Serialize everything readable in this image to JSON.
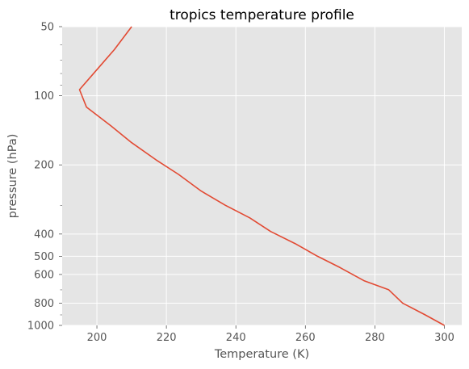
{
  "chart_data": {
    "type": "line",
    "title": "tropics temperature profile",
    "xlabel": "Temperature (K)",
    "ylabel": "pressure (hPa)",
    "xlim": [
      190,
      305
    ],
    "ylim": [
      1000,
      50
    ],
    "y_scale": "log",
    "grid": true,
    "x_ticks": [
      200,
      220,
      240,
      260,
      280,
      300
    ],
    "y_ticks": [
      50,
      100,
      200,
      400,
      500,
      600,
      800,
      1000
    ],
    "colors": {
      "background": "#e5e5e5",
      "grid": "#ffffff",
      "line": "#e24a33"
    },
    "series": [
      {
        "x": [
          300,
          294.5,
          288,
          284,
          277,
          270,
          263.5,
          257,
          250,
          244,
          237,
          230,
          223.5,
          217,
          210,
          204,
          197,
          195,
          200,
          205,
          210
        ],
        "y": [
          1000,
          900,
          800,
          700,
          640,
          560,
          500,
          440,
          390,
          340,
          300,
          260,
          220,
          190,
          160,
          135,
          112,
          94,
          77,
          63,
          50
        ]
      }
    ]
  }
}
